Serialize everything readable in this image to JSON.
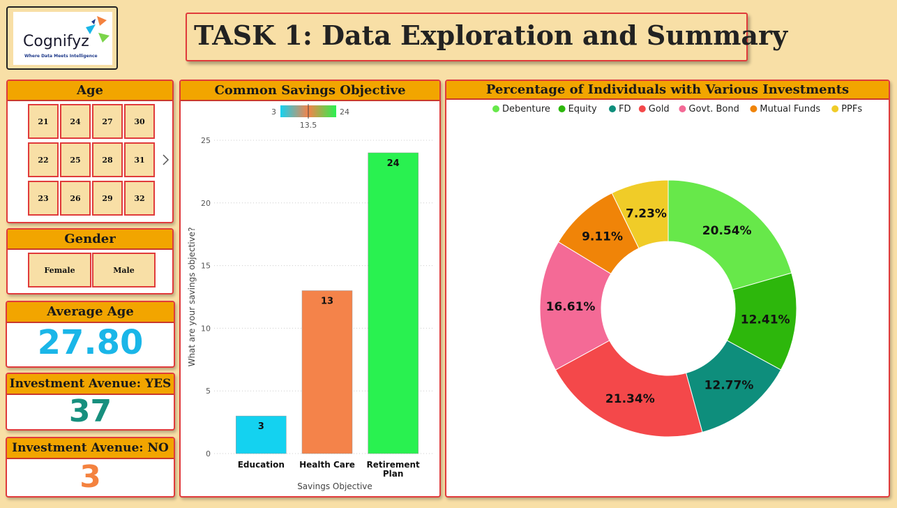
{
  "logo": {
    "word": "Cognifyz",
    "tagline": "Where Data Meets Intelligence"
  },
  "title": "TASK 1: Data Exploration and Summary",
  "age_slicer": {
    "title": "Age",
    "values": [
      "21",
      "24",
      "27",
      "30",
      "22",
      "25",
      "28",
      "31",
      "23",
      "26",
      "29",
      "32"
    ],
    "next_icon": "chevron-right-icon"
  },
  "gender_slicer": {
    "title": "Gender",
    "values": [
      "Female",
      "Male"
    ]
  },
  "kpis": {
    "average_age": {
      "label": "Average Age",
      "value": "27.80",
      "color": "#1ab6e8"
    },
    "invest_yes": {
      "label": "Investment Avenue: YES",
      "value": "37",
      "color": "#178f7e"
    },
    "invest_no": {
      "label": "Investment Avenue: NO",
      "value": "3",
      "color": "#f4823f"
    }
  },
  "bar_panel": {
    "title": "Common Savings Objective",
    "legend": {
      "min": "3",
      "max": "24",
      "mid": "13.5"
    }
  },
  "pie_panel": {
    "title": "Percentage of Individuals with Various Investments"
  },
  "chart_data": [
    {
      "type": "bar",
      "title": "Common Savings Objective",
      "xlabel": "Savings Objective",
      "ylabel": "What are your savings objective?",
      "categories": [
        "Education",
        "Health Care",
        "Retirement Plan"
      ],
      "values": [
        3,
        13,
        24
      ],
      "colors": [
        "#14d2f0",
        "#f4834a",
        "#29f150"
      ],
      "ylim": [
        0,
        25
      ],
      "yticks": [
        0,
        5,
        10,
        15,
        20,
        25
      ],
      "grid": true
    },
    {
      "type": "pie",
      "title": "Percentage of Individuals with Various Investments",
      "legend_position": "top",
      "series": [
        {
          "name": "Debenture",
          "value": 20.54,
          "label": "20.54%",
          "color": "#67e84a"
        },
        {
          "name": "Equity",
          "value": 12.41,
          "label": "12.41%",
          "color": "#2db70c"
        },
        {
          "name": "FD",
          "value": 12.77,
          "label": "12.77%",
          "color": "#0e8e7c"
        },
        {
          "name": "Gold",
          "value": 21.34,
          "label": "21.34%",
          "color": "#f4484a"
        },
        {
          "name": "Govt. Bond",
          "value": 16.61,
          "label": "16.61%",
          "color": "#f46a96"
        },
        {
          "name": "Mutual Funds",
          "value": 9.11,
          "label": "9.11%",
          "color": "#f08408"
        },
        {
          "name": "PPFs",
          "value": 7.23,
          "label": "7.23%",
          "color": "#f0cc28"
        }
      ]
    }
  ]
}
